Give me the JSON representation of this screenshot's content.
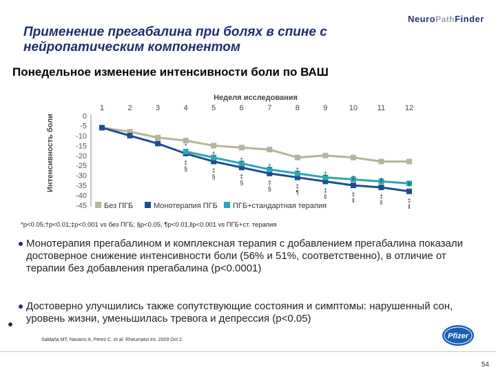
{
  "header": {
    "title": "Применение прегабалина при болях в спине с нейропатическим компонентом",
    "logo_neuro": "Neuro",
    "logo_path": "Path",
    "logo_finder": "Finder"
  },
  "subtitle": "Понедельное изменение интенсивности боли по ВАШ",
  "chart_data": {
    "type": "line",
    "title": "",
    "xlabel": "Неделя исследования",
    "ylabel": "Интенсивность боли",
    "x": [
      1,
      2,
      3,
      4,
      5,
      6,
      7,
      8,
      9,
      10,
      11,
      12
    ],
    "x_tick_labels": [
      "1",
      "2",
      "3",
      "4",
      "5",
      "6",
      "7",
      "8",
      "9",
      "10",
      "11",
      "12"
    ],
    "y_ticks": [
      0,
      -5,
      -10,
      -15,
      -20,
      -25,
      -30,
      -35,
      -40,
      -45
    ],
    "y_tick_labels": [
      "0",
      "-5",
      "-10",
      "-15",
      "-20",
      "-25",
      "-30",
      "-35",
      "-40",
      "-45"
    ],
    "ylim": [
      -45,
      0
    ],
    "x_axis_position": "top",
    "grid": false,
    "legend_position": "bottom",
    "series": [
      {
        "name": "Без ПГБ",
        "color": "#b7b49a",
        "marker": "square",
        "x": [
          1,
          2,
          3,
          4,
          5,
          6,
          7,
          8,
          9,
          10,
          11,
          12
        ],
        "values": [
          -6,
          -8,
          -11,
          -12.5,
          -15,
          -16,
          -17,
          -21,
          -20,
          -21,
          -23,
          -23
        ]
      },
      {
        "name": "Монотерапия ПГБ",
        "color": "#1f4e8c",
        "marker": "square",
        "x": [
          1,
          2,
          3,
          4,
          5,
          6,
          7,
          8,
          9,
          10,
          11,
          12
        ],
        "values": [
          -6,
          -10,
          -14,
          -19,
          -23,
          -26,
          -29,
          -31,
          -33,
          -35,
          -36,
          -38
        ]
      },
      {
        "name": "ПГБ+стандартная терапия",
        "color": "#2aa7b5",
        "marker": "square",
        "x": [
          4,
          5,
          6,
          7,
          8,
          9,
          10,
          11,
          12
        ],
        "values": [
          -18,
          -21,
          -24,
          -27,
          -29,
          -31,
          -32,
          -33,
          -34
        ]
      }
    ],
    "significance_marks": [
      {
        "x": 4,
        "top": "*",
        "bottom": "‡\n§"
      },
      {
        "x": 5,
        "top": "†",
        "bottom": "‡\n§"
      },
      {
        "x": 6,
        "top": "‡",
        "bottom": "‡\n§"
      },
      {
        "x": 7,
        "top": "‡",
        "bottom": "‡\n§"
      },
      {
        "x": 8,
        "top": "‡",
        "bottom": "‡\n¶"
      },
      {
        "x": 9,
        "top": "‡",
        "bottom": "‡\n‖"
      },
      {
        "x": 10,
        "top": "‡",
        "bottom": "‡\n‖"
      },
      {
        "x": 11,
        "top": "‡",
        "bottom": "‡\n‖"
      },
      {
        "x": 12,
        "top": "‡",
        "bottom": "‡\n‖"
      }
    ]
  },
  "footnote": "*p<0.05;†p<0.01;‡p<0.001 vs без ПГБ; §p<0.05, ¶p<0.01,‖p<0.001 vs ПГБ+ст. терапия",
  "bullets": [
    "Монотерапия прегабалином и комплексная терапия с добавлением прегабалина показали достоверное снижение интенсивности боли (56% и 51%, соответственно), в отличие от терапии без добавления прегабалина (p<0.0001)",
    "Достоверно улучшились также сопутствующие состояния и симптомы: нарушенный сон, уровень жизни, уменьшилась тревога и депрессия (p<0.05)"
  ],
  "citation": "Saldaña MT, Navarro A, Perez C. et al. Rheumatol Int. 2009 Oct 2.",
  "pfizer_logo": "Pfizer",
  "page_number": "54"
}
